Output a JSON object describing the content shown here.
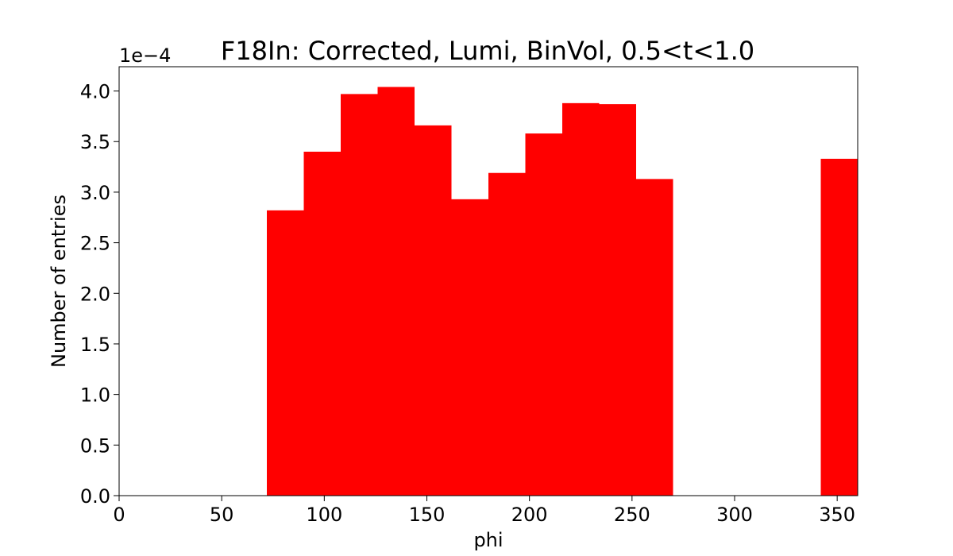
{
  "chart_data": {
    "type": "bar",
    "title": "F18In: Corrected, Lumi, BinVol, 0.5<t<1.0",
    "xlabel": "phi",
    "ylabel": "Number of entries",
    "y_offset_label": "1e−4",
    "xlim": [
      0,
      360
    ],
    "ylim": [
      0,
      4.24
    ],
    "x_ticks": [
      0,
      50,
      100,
      150,
      200,
      250,
      300,
      350
    ],
    "x_tick_labels": [
      "0",
      "50",
      "100",
      "150",
      "200",
      "250",
      "300",
      "350"
    ],
    "y_ticks": [
      0,
      0.5,
      1.0,
      1.5,
      2.0,
      2.5,
      3.0,
      3.5,
      4.0
    ],
    "y_tick_labels": [
      "0.0",
      "0.5",
      "1.0",
      "1.5",
      "2.0",
      "2.5",
      "3.0",
      "3.5",
      "4.0"
    ],
    "bin_edges": [
      0,
      18,
      36,
      54,
      72,
      90,
      108,
      126,
      144,
      162,
      180,
      198,
      216,
      234,
      252,
      270,
      288,
      306,
      324,
      342,
      360
    ],
    "values": [
      0,
      0,
      0,
      0,
      2.82,
      3.4,
      3.97,
      4.04,
      3.66,
      2.93,
      3.19,
      3.58,
      3.88,
      3.87,
      3.13,
      0,
      0,
      0,
      0,
      3.33
    ],
    "bar_color": "#ff0000",
    "grid": false
  }
}
